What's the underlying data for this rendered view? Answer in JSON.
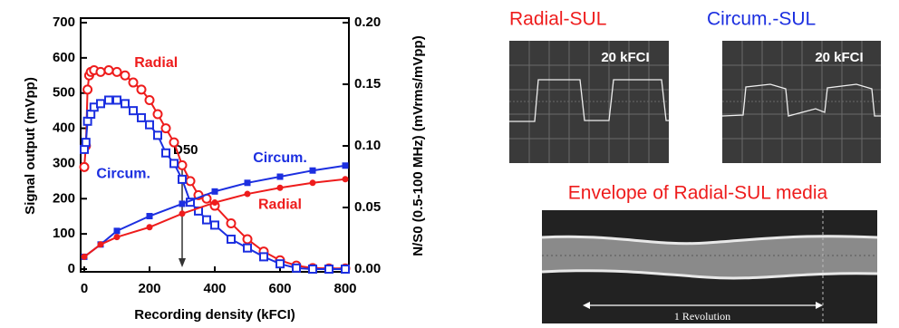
{
  "chart_data": {
    "type": "line",
    "x_label": "Recording density (kFCI)",
    "y_label": "Signal output (mVpp)",
    "y2_label": "N/S0 (0.5-100 MHz) (mVrms/mVpp)",
    "xlim": [
      0,
      800
    ],
    "xticks": [
      0,
      200,
      400,
      600,
      800
    ],
    "ylim": [
      0,
      700
    ],
    "yticks": [
      0,
      100,
      200,
      300,
      400,
      500,
      600,
      700
    ],
    "y2lim": [
      0,
      0.2
    ],
    "y2ticks": [
      {
        "value": 0,
        "label": "0.00"
      },
      {
        "value": 0.05,
        "label": "0.05"
      },
      {
        "value": 0.1,
        "label": "0.10"
      },
      {
        "value": 0.15,
        "label": "0.15"
      },
      {
        "value": 0.2,
        "label": "0.20"
      }
    ],
    "series": [
      {
        "color": "#ee1c1c",
        "marker": "open-circle",
        "axis": "y",
        "x": [
          0,
          5,
          10,
          15,
          20,
          30,
          50,
          75,
          100,
          125,
          150,
          175,
          200,
          225,
          250,
          275,
          300,
          325,
          350,
          375,
          400,
          450,
          500,
          550,
          600,
          650,
          700,
          750,
          800
        ],
        "values": [
          290,
          350,
          510,
          550,
          560,
          565,
          560,
          565,
          560,
          550,
          530,
          510,
          480,
          440,
          400,
          360,
          295,
          250,
          210,
          200,
          180,
          130,
          85,
          50,
          25,
          10,
          3,
          2,
          2
        ]
      },
      {
        "color": "#1c2fe0",
        "marker": "open-square",
        "axis": "y",
        "x": [
          0,
          5,
          10,
          20,
          30,
          50,
          75,
          100,
          125,
          150,
          175,
          200,
          225,
          250,
          275,
          300,
          325,
          350,
          375,
          400,
          450,
          500,
          550,
          600,
          650,
          700,
          750,
          800
        ],
        "values": [
          340,
          360,
          420,
          440,
          460,
          470,
          480,
          480,
          470,
          450,
          430,
          410,
          380,
          330,
          300,
          255,
          190,
          165,
          140,
          125,
          85,
          60,
          35,
          15,
          3,
          0,
          0,
          0
        ]
      },
      {
        "color": "#1c2fe0",
        "marker": "filled-square",
        "axis": "y2",
        "x": [
          0,
          50,
          100,
          200,
          300,
          400,
          500,
          600,
          700,
          800
        ],
        "values": [
          0.01,
          0.02,
          0.031,
          0.043,
          0.053,
          0.063,
          0.07,
          0.075,
          0.08,
          0.084
        ]
      },
      {
        "color": "#ee1c1c",
        "marker": "filled-circle",
        "axis": "y2",
        "x": [
          0,
          50,
          100,
          200,
          300,
          400,
          500,
          600,
          700,
          800
        ],
        "values": [
          0.01,
          0.02,
          0.026,
          0.034,
          0.045,
          0.054,
          0.061,
          0.066,
          0.07,
          0.073
        ]
      }
    ],
    "annotations": [
      {
        "text": "Radial",
        "color": "#ee1c1c",
        "x": 220,
        "y": 585
      },
      {
        "text": "Circum.",
        "color": "#1c2fe0",
        "x": 120,
        "y": 270
      },
      {
        "text": "Circum.",
        "color": "#1c2fe0",
        "x": 600,
        "y": 0.09
      },
      {
        "text": "Radial",
        "color": "#ee1c1c",
        "x": 600,
        "y": 0.052
      }
    ],
    "d50_label": "D50",
    "d50_x": 300
  },
  "panels": {
    "radial_title": "Radial-SUL",
    "circum_title": "Circum.-SUL",
    "radial_density": "20 kFCI",
    "circum_density": "20 kFCI",
    "envelope_title": "Envelope of Radial-SUL media",
    "revolution": "1 Revolution"
  }
}
